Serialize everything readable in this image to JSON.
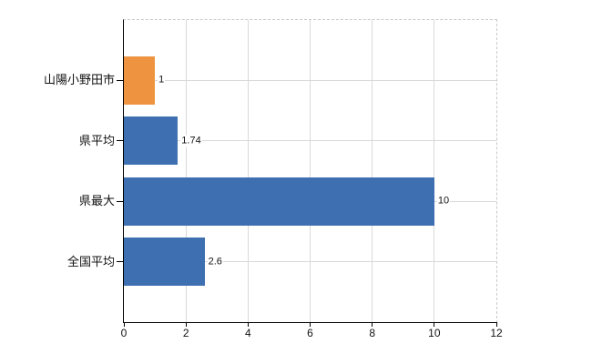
{
  "chart": {
    "background": "#ffffff",
    "axis_color": "#000000",
    "gridline_color": "#d9d9d9",
    "border_color": "#c9c9c9",
    "text_color": "#111111"
  },
  "chart_data": {
    "type": "bar",
    "orientation": "horizontal",
    "categories": [
      "山陽小野田市",
      "県平均",
      "県最大",
      "全国平均"
    ],
    "values": [
      1,
      1.74,
      10,
      2.6
    ],
    "value_labels": [
      "1",
      "1.74",
      "10",
      "2.6"
    ],
    "bar_colors": [
      "#EE9440",
      "#3E6FB0",
      "#3E6FB0",
      "#3E6FB0"
    ],
    "xlim": [
      0,
      12
    ],
    "xticks": [
      0,
      2,
      4,
      6,
      8,
      10,
      12
    ],
    "xtick_labels": [
      "0",
      "2",
      "4",
      "6",
      "8",
      "10",
      "12"
    ],
    "grid": true
  }
}
